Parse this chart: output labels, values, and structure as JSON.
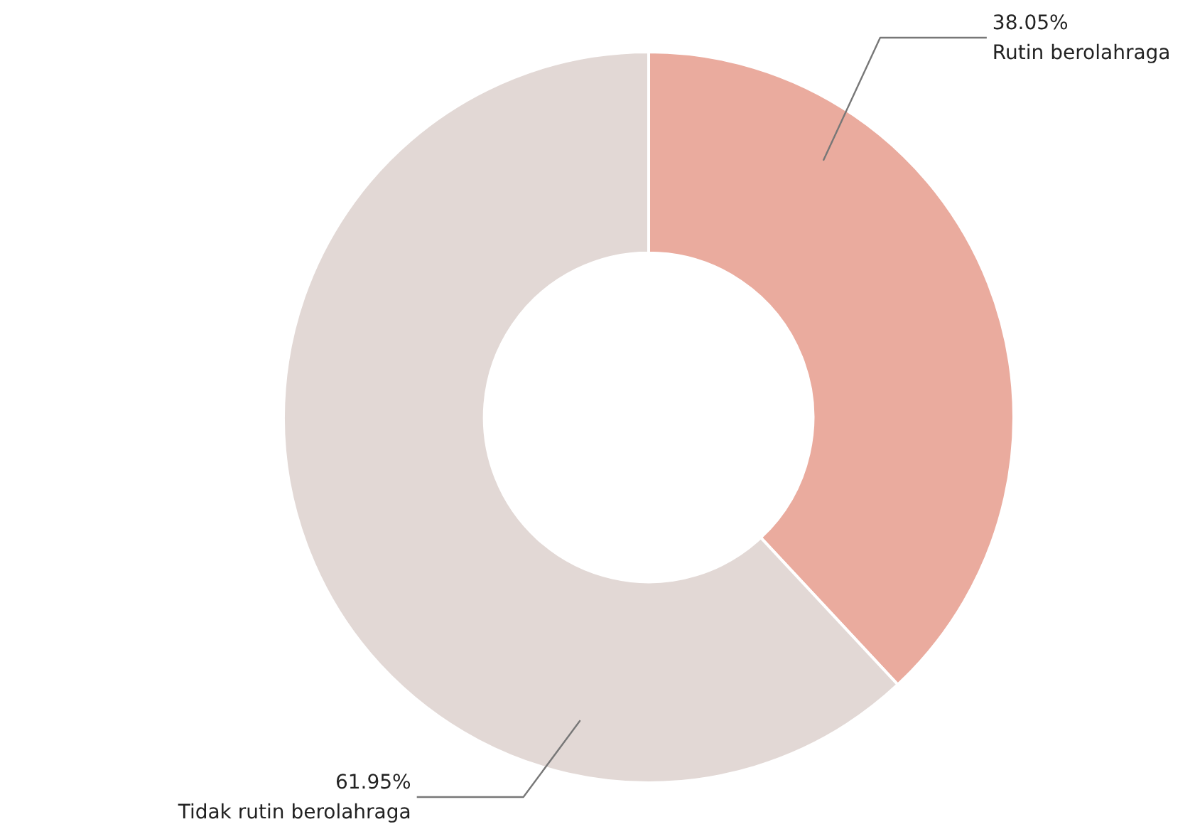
{
  "chart_data": {
    "type": "donut",
    "categories": [
      "Rutin berolahraga",
      "Tidak rutin berolahraga"
    ],
    "values": [
      38.05,
      61.95
    ],
    "value_labels": [
      "38.05%",
      "61.95%"
    ],
    "colors": [
      "#eaab9e",
      "#e2d8d5"
    ]
  }
}
